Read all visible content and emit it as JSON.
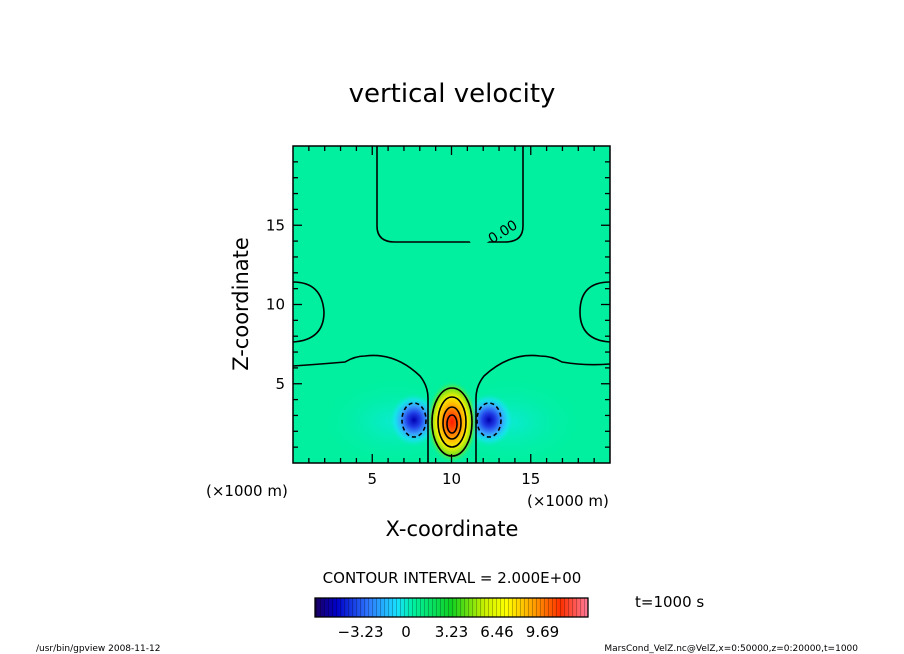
{
  "chart_data": {
    "type": "heatmap",
    "title": "vertical velocity",
    "xlabel": "X-coordinate",
    "ylabel": "Z-coordinate",
    "x_unit": "(×1000 m)",
    "y_unit": "(×1000 m)",
    "xlim": [
      0,
      20
    ],
    "ylim": [
      0,
      20
    ],
    "x_ticks": [
      5,
      10,
      15
    ],
    "y_ticks": [
      5,
      10,
      15
    ],
    "contour_interval_label": "CONTOUR INTERVAL = 2.000E+00",
    "contour_label": "0.00",
    "time_label": "t=1000 s",
    "colorbar": {
      "min": -6.46,
      "max": 12.92,
      "tick_labels": [
        "−3.23",
        "0",
        "3.23",
        "6.46",
        "9.69"
      ],
      "tick_values": [
        -3.23,
        0,
        3.23,
        6.46,
        9.69
      ]
    },
    "features": [
      {
        "kind": "updraft-max",
        "x": 10.0,
        "z": 2.5,
        "value": 9.69
      },
      {
        "kind": "downdraft-min",
        "x": 7.7,
        "z": 2.8,
        "value": -3.23
      },
      {
        "kind": "downdraft-min",
        "x": 12.3,
        "z": 2.8,
        "value": -3.23
      }
    ]
  },
  "footer": {
    "program": "/usr/bin/gpview   2008-11-12",
    "source": "MarsCond_VelZ.nc@VelZ,x=0:50000,z=0:20000,t=1000"
  }
}
